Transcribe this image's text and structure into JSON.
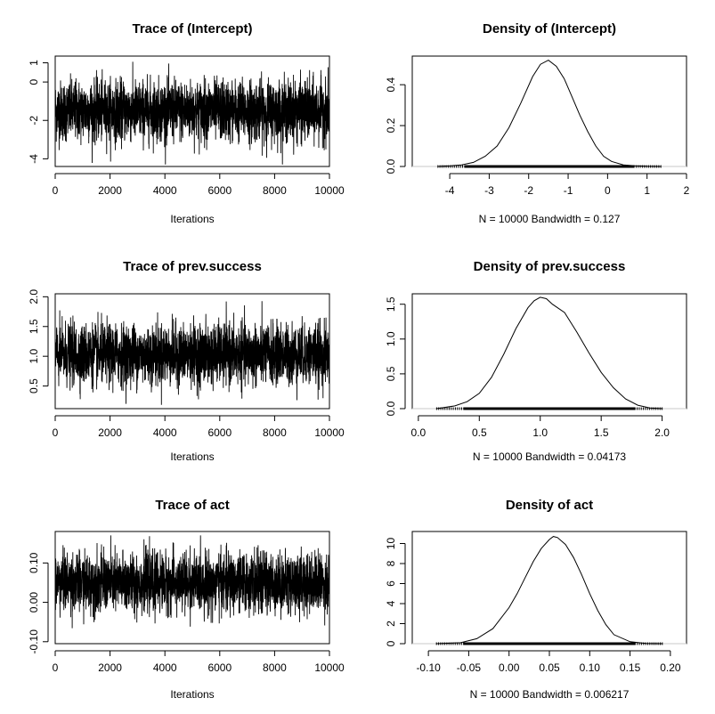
{
  "chart_data": [
    {
      "type": "line",
      "panel": "trace-intercept",
      "title": "Trace of (Intercept)",
      "xlabel": "Iterations",
      "x_ticks": [
        "0",
        "2000",
        "4000",
        "6000",
        "8000",
        "10000"
      ],
      "y_ticks": [
        "-4",
        "-2",
        "0",
        "1"
      ],
      "xlim": [
        0,
        10000
      ],
      "ylim": [
        -4.4,
        1.35
      ],
      "series": [
        {
          "name": "(Intercept)",
          "mean": -1.5,
          "sd": 0.78,
          "min": -4.3,
          "max": 1.3
        }
      ]
    },
    {
      "type": "line",
      "panel": "density-intercept",
      "title": "Density of (Intercept)",
      "xlabel": "N = 10000   Bandwidth = 0.127",
      "x_ticks": [
        "-4",
        "-3",
        "-2",
        "-1",
        "0",
        "1",
        "2"
      ],
      "y_ticks": [
        "0.0",
        "0.2",
        "0.4"
      ],
      "xlim": [
        -4.95,
        2.0
      ],
      "ylim": [
        0,
        0.54
      ],
      "series": [
        {
          "name": "density",
          "x": [
            -4.3,
            -4.0,
            -3.7,
            -3.4,
            -3.1,
            -2.8,
            -2.5,
            -2.2,
            -1.9,
            -1.7,
            -1.5,
            -1.3,
            -1.1,
            -0.9,
            -0.7,
            -0.5,
            -0.3,
            -0.1,
            0.1,
            0.4,
            0.7,
            1.0,
            1.35
          ],
          "y": [
            0.0,
            0.003,
            0.008,
            0.02,
            0.05,
            0.1,
            0.19,
            0.31,
            0.44,
            0.5,
            0.52,
            0.49,
            0.43,
            0.34,
            0.25,
            0.17,
            0.1,
            0.05,
            0.025,
            0.008,
            0.003,
            0.001,
            0.0
          ]
        }
      ],
      "rug": {
        "from": -4.3,
        "to": 1.35
      }
    },
    {
      "type": "line",
      "panel": "trace-prev-success",
      "title": "Trace of prev.success",
      "xlabel": "Iterations",
      "x_ticks": [
        "0",
        "2000",
        "4000",
        "6000",
        "8000",
        "10000"
      ],
      "y_ticks": [
        "0.5",
        "1.0",
        "1.5",
        "2.0"
      ],
      "xlim": [
        0,
        10000
      ],
      "ylim": [
        0.12,
        2.05
      ],
      "series": [
        {
          "name": "prev.success",
          "mean": 1.03,
          "sd": 0.25,
          "min": 0.15,
          "max": 2.0
        }
      ]
    },
    {
      "type": "line",
      "panel": "density-prev-success",
      "title": "Density of prev.success",
      "xlabel": "N = 10000   Bandwidth = 0.04173",
      "x_ticks": [
        "0.0",
        "0.5",
        "1.0",
        "1.5",
        "2.0"
      ],
      "y_ticks": [
        "0.0",
        "0.5",
        "1.0",
        "1.5"
      ],
      "xlim": [
        -0.05,
        2.2
      ],
      "ylim": [
        0,
        1.65
      ],
      "series": [
        {
          "name": "density",
          "x": [
            0.15,
            0.3,
            0.4,
            0.5,
            0.6,
            0.7,
            0.8,
            0.9,
            0.95,
            1.0,
            1.05,
            1.1,
            1.2,
            1.3,
            1.4,
            1.5,
            1.6,
            1.7,
            1.8,
            1.9,
            2.0
          ],
          "y": [
            0.0,
            0.04,
            0.1,
            0.22,
            0.45,
            0.78,
            1.15,
            1.45,
            1.55,
            1.6,
            1.58,
            1.5,
            1.38,
            1.1,
            0.8,
            0.52,
            0.3,
            0.14,
            0.05,
            0.01,
            0.0
          ]
        }
      ],
      "rug": {
        "from": 0.15,
        "to": 2.0
      }
    },
    {
      "type": "line",
      "panel": "trace-act",
      "title": "Trace of act",
      "xlabel": "Iterations",
      "x_ticks": [
        "0",
        "2000",
        "4000",
        "6000",
        "8000",
        "10000"
      ],
      "y_ticks": [
        "-0.10",
        "0.00",
        "0.10"
      ],
      "xlim": [
        0,
        10000
      ],
      "ylim": [
        -0.105,
        0.18
      ],
      "series": [
        {
          "name": "act",
          "mean": 0.05,
          "sd": 0.037,
          "min": -0.09,
          "max": 0.17
        }
      ]
    },
    {
      "type": "line",
      "panel": "density-act",
      "title": "Density of act",
      "xlabel": "N = 10000   Bandwidth = 0.006217",
      "x_ticks": [
        "-0.10",
        "-0.05",
        "0.00",
        "0.05",
        "0.10",
        "0.15",
        "0.20"
      ],
      "y_ticks": [
        "0",
        "2",
        "4",
        "6",
        "8",
        "10"
      ],
      "xlim": [
        -0.12,
        0.22
      ],
      "ylim": [
        0,
        11.2
      ],
      "series": [
        {
          "name": "density",
          "x": [
            -0.09,
            -0.06,
            -0.04,
            -0.02,
            0.0,
            0.01,
            0.02,
            0.03,
            0.04,
            0.05,
            0.055,
            0.06,
            0.07,
            0.08,
            0.09,
            0.1,
            0.11,
            0.12,
            0.13,
            0.15,
            0.17,
            0.19
          ],
          "y": [
            0.0,
            0.1,
            0.5,
            1.5,
            3.6,
            5.0,
            6.6,
            8.2,
            9.5,
            10.4,
            10.7,
            10.6,
            9.9,
            8.6,
            6.9,
            5.0,
            3.3,
            1.9,
            0.9,
            0.2,
            0.03,
            0.0
          ]
        }
      ],
      "rug": {
        "from": -0.09,
        "to": 0.19
      }
    }
  ]
}
